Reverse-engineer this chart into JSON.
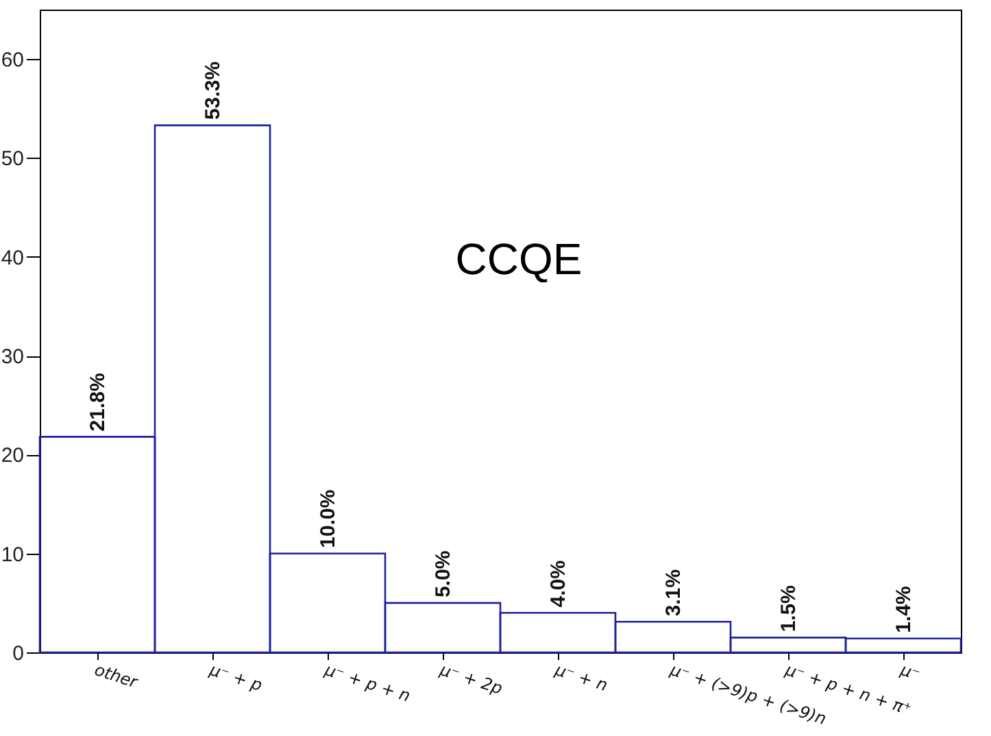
{
  "chart_data": {
    "type": "bar",
    "categories": [
      "other",
      "μ⁻ + p",
      "μ⁻ + p + n",
      "μ⁻ + 2p",
      "μ⁻ + n",
      "μ⁻ + (>9)p + (>9)n",
      "μ⁻ + p + n + π⁺",
      "μ⁻"
    ],
    "values": [
      21.8,
      53.3,
      10.0,
      5.0,
      4.0,
      3.1,
      1.5,
      1.4
    ],
    "value_labels": [
      "21.8%",
      "53.3%",
      "10.0%",
      "5.0%",
      "4.0%",
      "3.1%",
      "1.5%",
      "1.4%"
    ],
    "color": "#1f1fa0",
    "ylim": [
      0,
      65
    ],
    "yticks": [
      0,
      10,
      20,
      30,
      40,
      50,
      60
    ],
    "grid": false,
    "annotations": [
      "CCQE"
    ]
  }
}
